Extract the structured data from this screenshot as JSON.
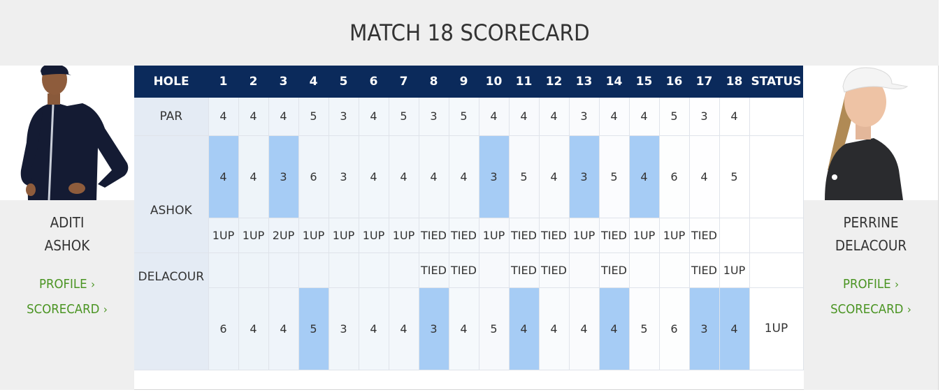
{
  "header": {
    "title": "MATCH 18 SCORECARD"
  },
  "players": {
    "left": {
      "first": "ADITI",
      "last": "ASHOK",
      "profile_label": "PROFILE",
      "scorecard_label": "SCORECARD"
    },
    "right": {
      "first": "PERRINE",
      "last": "DELACOUR",
      "profile_label": "PROFILE",
      "scorecard_label": "SCORECARD"
    }
  },
  "table": {
    "hole_label": "HOLE",
    "status_label": "STATUS",
    "holes": [
      "1",
      "2",
      "3",
      "4",
      "5",
      "6",
      "7",
      "8",
      "9",
      "10",
      "11",
      "12",
      "13",
      "14",
      "15",
      "16",
      "17",
      "18"
    ],
    "par_label": "PAR",
    "par": [
      "4",
      "4",
      "4",
      "5",
      "3",
      "4",
      "5",
      "3",
      "5",
      "4",
      "4",
      "4",
      "3",
      "4",
      "4",
      "5",
      "3",
      "4"
    ],
    "player1_label": "ASHOK",
    "player1_scores": [
      "4",
      "4",
      "3",
      "6",
      "3",
      "4",
      "4",
      "4",
      "4",
      "3",
      "5",
      "4",
      "3",
      "5",
      "4",
      "6",
      "4",
      "5"
    ],
    "player1_status": [
      "1UP",
      "1UP",
      "2UP",
      "1UP",
      "1UP",
      "1UP",
      "1UP",
      "TIED",
      "TIED",
      "1UP",
      "TIED",
      "TIED",
      "1UP",
      "TIED",
      "1UP",
      "1UP",
      "TIED",
      ""
    ],
    "player2_label": "DELACOUR",
    "player2_status": [
      "",
      "",
      "",
      "",
      "",
      "",
      "",
      "TIED",
      "TIED",
      "",
      "TIED",
      "TIED",
      "",
      "TIED",
      "",
      "",
      "TIED",
      "1UP"
    ],
    "player2_scores": [
      "6",
      "4",
      "4",
      "5",
      "3",
      "4",
      "4",
      "3",
      "4",
      "5",
      "4",
      "4",
      "4",
      "4",
      "5",
      "6",
      "3",
      "4"
    ],
    "final_status": "1UP"
  },
  "colors": {
    "header_bg": "#0b2a5b",
    "highlight": "#a6ccf5",
    "link": "#4a9422",
    "panel_bg": "#efefef"
  },
  "icons": [
    "chevron-right-icon"
  ]
}
